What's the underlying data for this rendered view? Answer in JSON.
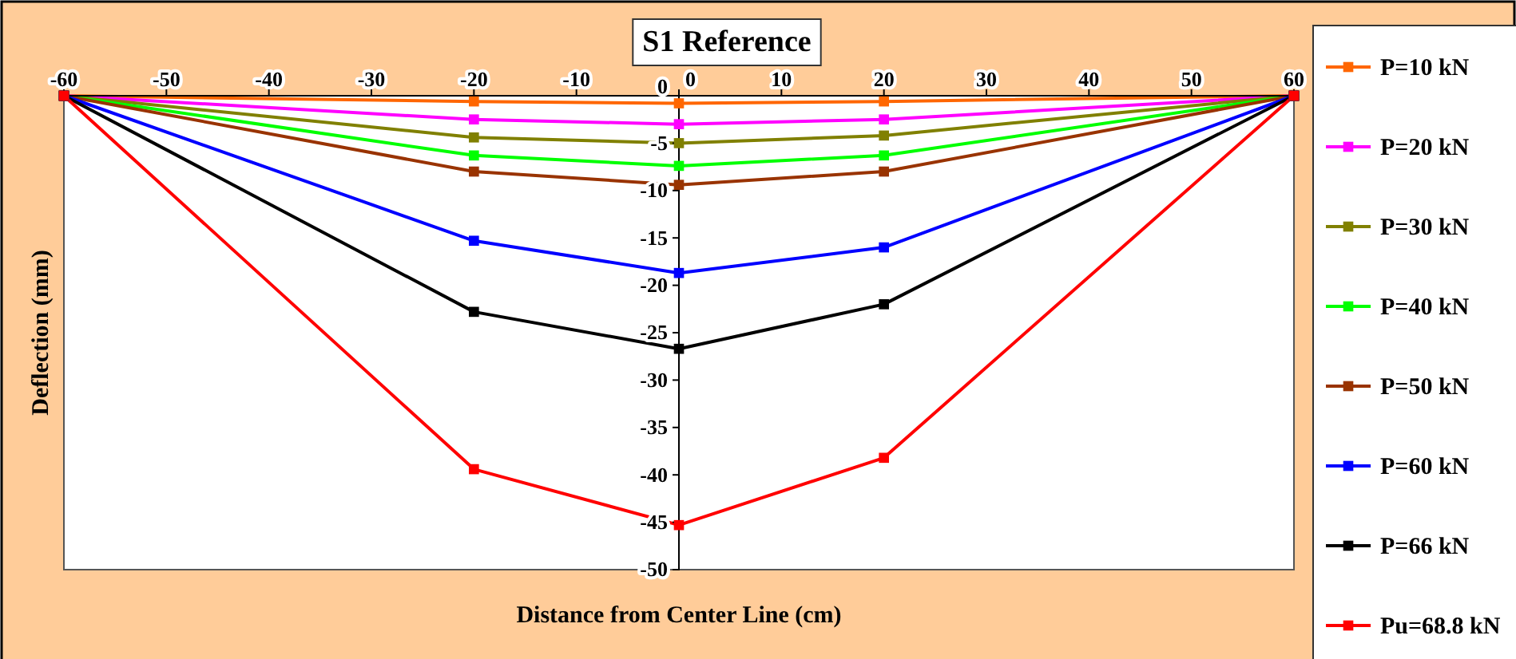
{
  "chart_data": {
    "type": "line",
    "title": "S1 Reference",
    "xlabel": "Distance from Center Line (cm)",
    "ylabel": "Deflection (mm)",
    "x": [
      -60,
      -20,
      0,
      20,
      60
    ],
    "xlim": [
      -60,
      60
    ],
    "xticks": [
      -60,
      -50,
      -40,
      -30,
      -20,
      -10,
      0,
      10,
      20,
      30,
      40,
      50,
      60
    ],
    "ylim": [
      -50,
      0
    ],
    "yticks": [
      -50,
      -45,
      -40,
      -35,
      -30,
      -25,
      -20,
      -15,
      -10,
      -5,
      0
    ],
    "grid": false,
    "legend": "right",
    "marker": "square",
    "line_style": "solid",
    "series": [
      {
        "name": "P=10 kN",
        "color": "#ff6600",
        "values": [
          0,
          -0.6,
          -0.8,
          -0.6,
          0
        ]
      },
      {
        "name": "P=20 kN",
        "color": "#ff00ff",
        "values": [
          0,
          -2.5,
          -3,
          -2.5,
          0
        ]
      },
      {
        "name": "P=30 kN",
        "color": "#808000",
        "values": [
          0,
          -4.4,
          -5,
          -4.2,
          0
        ]
      },
      {
        "name": "P=40 kN",
        "color": "#00ff00",
        "values": [
          0,
          -6.3,
          -7.4,
          -6.3,
          0
        ]
      },
      {
        "name": "P=50 kN",
        "color": "#993300",
        "values": [
          0,
          -8,
          -9.4,
          -8,
          0
        ]
      },
      {
        "name": "P=60 kN",
        "color": "#0000ff",
        "values": [
          0,
          -15.3,
          -18.7,
          -16,
          0
        ]
      },
      {
        "name": "P=66 kN",
        "color": "#000000",
        "values": [
          0,
          -22.8,
          -26.7,
          -22,
          0
        ]
      },
      {
        "name": "Pu=68.8 kN",
        "color": "#ff0000",
        "values": [
          0,
          -39.4,
          -45.3,
          -38.2,
          0
        ]
      }
    ]
  }
}
